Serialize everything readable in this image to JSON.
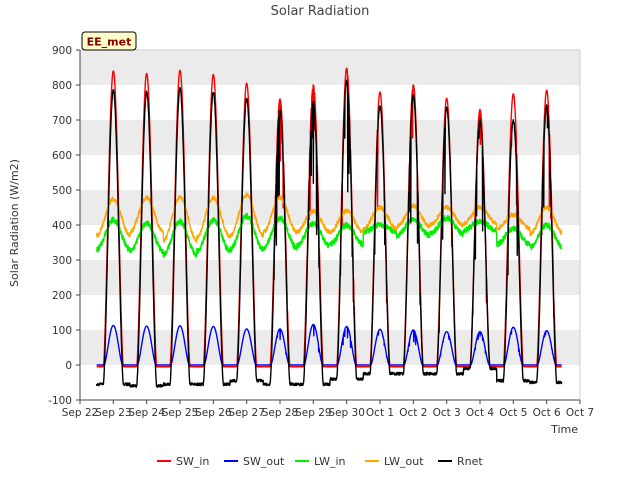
{
  "chart_data": {
    "type": "line",
    "title": "Solar Radiation",
    "xlabel": "Time",
    "ylabel": "Solar Radiation (W/m2)",
    "badge": "EE_met",
    "ylim": [
      -100,
      900
    ],
    "yticks": [
      -100,
      0,
      100,
      200,
      300,
      400,
      500,
      600,
      700,
      800,
      900
    ],
    "xlim": [
      0,
      15
    ],
    "xticks": [
      {
        "label": "Sep 22",
        "x": 0
      },
      {
        "label": "Sep 23",
        "x": 1
      },
      {
        "label": "Sep 24",
        "x": 2
      },
      {
        "label": "Sep 25",
        "x": 3
      },
      {
        "label": "Sep 26",
        "x": 4
      },
      {
        "label": "Sep 27",
        "x": 5
      },
      {
        "label": "Sep 28",
        "x": 6
      },
      {
        "label": "Sep 29",
        "x": 7
      },
      {
        "label": "Sep 30",
        "x": 8
      },
      {
        "label": "Oct 1",
        "x": 9
      },
      {
        "label": "Oct 2",
        "x": 10
      },
      {
        "label": "Oct 3",
        "x": 11
      },
      {
        "label": "Oct 4",
        "x": 12
      },
      {
        "label": "Oct 5",
        "x": 13
      },
      {
        "label": "Oct 6",
        "x": 14
      },
      {
        "label": "Oct 7",
        "x": 15
      }
    ],
    "grid": "horizontal bands",
    "legend_position": "bottom",
    "data_start_day": 0.5,
    "data_end_day": 14.45,
    "daily_peak_day_offsets": [
      1.0,
      2.0,
      3.0,
      4.0,
      5.0,
      6.0,
      7.0,
      8.0,
      9.0,
      10.0,
      11.0,
      12.0,
      13.0,
      14.0
    ],
    "series": [
      {
        "name": "SW_in",
        "color": "#ff0000",
        "night_value": -5,
        "daily_peaks": [
          840,
          833,
          842,
          830,
          805,
          760,
          800,
          848,
          780,
          800,
          762,
          730,
          775,
          785
        ]
      },
      {
        "name": "SW_out",
        "color": "#0000ff",
        "night_value": 0,
        "daily_peaks": [
          113,
          111,
          112,
          110,
          103,
          103,
          116,
          110,
          102,
          100,
          95,
          95,
          108,
          98
        ]
      },
      {
        "name": "LW_in",
        "color": "#00ee00",
        "night_values": [
          330,
          325,
          315,
          325,
          330,
          335,
          340,
          345,
          380,
          370,
          375,
          385,
          345,
          335
        ],
        "daily_peaks": [
          415,
          405,
          410,
          415,
          425,
          420,
          405,
          400,
          400,
          415,
          420,
          410,
          390,
          400
        ]
      },
      {
        "name": "LW_out",
        "color": "#ffa500",
        "night_values": [
          370,
          380,
          355,
          365,
          370,
          380,
          380,
          380,
          390,
          395,
          400,
          405,
          390,
          375
        ],
        "daily_peaks": [
          475,
          478,
          480,
          478,
          485,
          478,
          440,
          440,
          450,
          455,
          450,
          450,
          430,
          450
        ]
      },
      {
        "name": "Rnet",
        "color": "#000000",
        "night_values": [
          -55,
          -60,
          -55,
          -55,
          -45,
          -55,
          -55,
          -40,
          -25,
          -25,
          -25,
          -10,
          -45,
          -50
        ],
        "daily_peaks": [
          785,
          780,
          790,
          780,
          760,
          730,
          750,
          810,
          740,
          770,
          735,
          700,
          700,
          740
        ]
      }
    ]
  }
}
